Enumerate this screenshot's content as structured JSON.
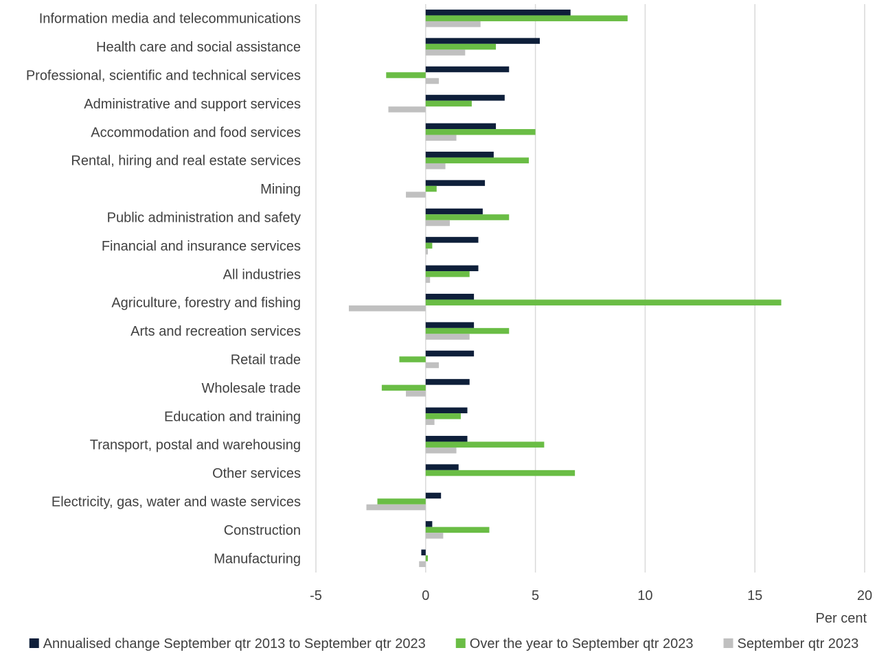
{
  "chart_data": {
    "type": "bar",
    "orientation": "horizontal",
    "categories": [
      "Information media and telecommunications",
      "Health care and social assistance",
      "Professional, scientific and technical services",
      "Administrative and support services",
      "Accommodation and food services",
      "Rental, hiring and real estate services",
      "Mining",
      "Public administration and safety",
      "Financial and insurance services",
      "All industries",
      "Agriculture, forestry and fishing",
      "Arts and recreation services",
      "Retail trade",
      "Wholesale trade",
      "Education and training",
      "Transport, postal and warehousing",
      "Other services",
      "Electricity, gas, water and waste services",
      "Construction",
      "Manufacturing"
    ],
    "series": [
      {
        "name": "Annualised change September qtr 2013 to September qtr 2023",
        "color": "#0e1f3a",
        "values": [
          6.6,
          5.2,
          3.8,
          3.6,
          3.2,
          3.1,
          2.7,
          2.6,
          2.4,
          2.4,
          2.2,
          2.2,
          2.2,
          2.0,
          1.9,
          1.9,
          1.5,
          0.7,
          0.3,
          -0.2
        ]
      },
      {
        "name": "Over the year to September qtr 2023",
        "color": "#6abd45",
        "values": [
          9.2,
          3.2,
          -1.8,
          2.1,
          5.0,
          4.7,
          0.5,
          3.8,
          0.3,
          2.0,
          16.2,
          3.8,
          -1.2,
          -2.0,
          1.6,
          5.4,
          6.8,
          -2.2,
          2.9,
          0.1
        ]
      },
      {
        "name": "September qtr 2023",
        "color": "#c0c0c0",
        "values": [
          2.5,
          1.8,
          0.6,
          -1.7,
          1.4,
          0.9,
          -0.9,
          1.1,
          0.1,
          0.2,
          -3.5,
          2.0,
          0.6,
          -0.9,
          0.4,
          1.4,
          0.0,
          -2.7,
          0.8,
          -0.3
        ]
      }
    ],
    "xlim": [
      -5,
      20
    ],
    "xticks": [
      -5,
      0,
      5,
      10,
      15,
      20
    ],
    "xlabel": "Per cent",
    "grid": "vertical",
    "legend": "bottom"
  }
}
